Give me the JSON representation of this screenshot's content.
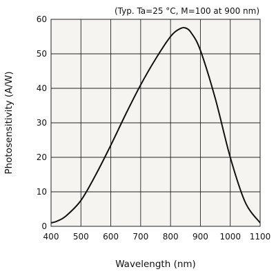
{
  "chart_data": {
    "type": "line",
    "annotation": "(Typ. Ta=25 °C, M=100 at 900 nm)",
    "xlabel": "Wavelength (nm)",
    "ylabel": "Photosensitivity (A/W)",
    "xlim": [
      400,
      1100
    ],
    "ylim": [
      0,
      60
    ],
    "x_ticks": [
      400,
      500,
      600,
      700,
      800,
      900,
      1000,
      1100
    ],
    "y_ticks": [
      0,
      10,
      20,
      30,
      40,
      50,
      60
    ],
    "grid": true,
    "colors": {
      "background": "#f5f4f1",
      "grid": "#222222",
      "line": "#111111"
    },
    "series": [
      {
        "x": [
          400,
          420,
          450,
          500,
          550,
          600,
          650,
          700,
          750,
          800,
          830,
          850,
          870,
          900,
          950,
          1000,
          1050,
          1100
        ],
        "y": [
          1,
          1.5,
          3,
          7.5,
          15,
          23.5,
          32.5,
          41,
          48.5,
          55,
          57.2,
          57.5,
          56,
          51,
          37,
          20,
          7,
          1
        ]
      }
    ]
  }
}
